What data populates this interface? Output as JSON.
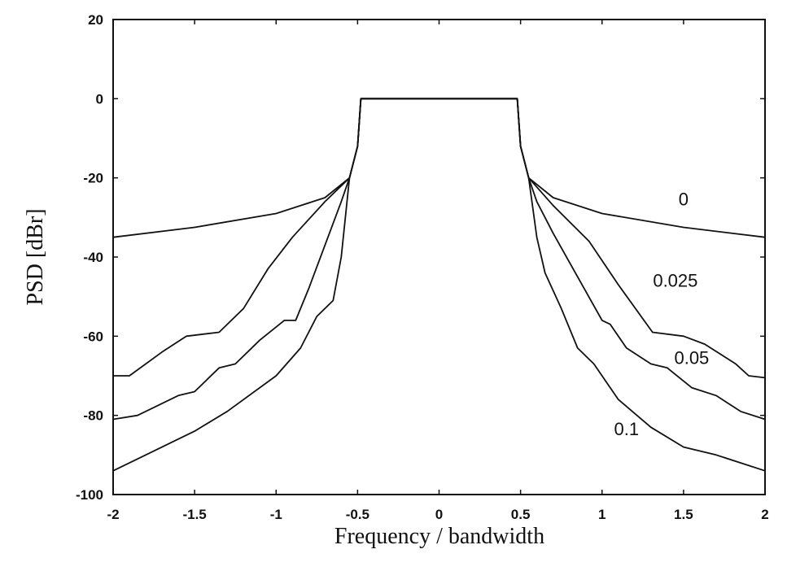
{
  "chart_data": {
    "type": "line",
    "title": "",
    "xlabel": "Frequency / bandwidth",
    "ylabel": "PSD [dBr]",
    "xlim": [
      -2,
      2
    ],
    "ylim": [
      -100,
      20
    ],
    "xticks": [
      -2,
      -1.5,
      -1,
      -0.5,
      0,
      0.5,
      1,
      1.5,
      2
    ],
    "xtick_labels": [
      "-2",
      "-1.5",
      "-1",
      "-0.5",
      "0",
      "0.5",
      "1",
      "1.5",
      "2"
    ],
    "yticks": [
      20,
      0,
      -20,
      -40,
      -60,
      -80,
      -100
    ],
    "ytick_labels": [
      "20",
      "0",
      "-20",
      "-40",
      "-60",
      "-80",
      "-100"
    ],
    "grid": false,
    "series": [
      {
        "name": "0",
        "label_at": [
          1.5,
          -27
        ],
        "x": [
          -2,
          -1.5,
          -1.0,
          -0.7,
          -0.55,
          -0.5,
          -0.48,
          0.48,
          0.5,
          0.55,
          0.7,
          1.0,
          1.5,
          2
        ],
        "y": [
          -35,
          -32.5,
          -29,
          -25,
          -20,
          -12,
          0,
          0,
          -12,
          -20,
          -25,
          -29,
          -32.5,
          -35
        ]
      },
      {
        "name": "0.025",
        "label_at": [
          1.45,
          -47.5
        ],
        "x": [
          -2,
          -1.9,
          -1.7,
          -1.55,
          -1.35,
          -1.2,
          -1.05,
          -0.9,
          -0.7,
          -0.55,
          -0.5,
          -0.48,
          0.48,
          0.5,
          0.55,
          0.7,
          0.92,
          1.1,
          1.31,
          1.5,
          1.63,
          1.82,
          1.9,
          2
        ],
        "y": [
          -70,
          -70,
          -64,
          -60,
          -59,
          -53,
          -43,
          -35,
          -26,
          -20,
          -12,
          0,
          0,
          -12,
          -20,
          -27,
          -36,
          -47,
          -59,
          -60,
          -62,
          -67,
          -70,
          -70.5
        ]
      },
      {
        "name": "0.05",
        "label_at": [
          1.55,
          -67
        ],
        "x": [
          -2,
          -1.85,
          -1.6,
          -1.5,
          -1.35,
          -1.25,
          -1.1,
          -0.95,
          -0.88,
          -0.8,
          -0.7,
          -0.6,
          -0.55,
          -0.5,
          -0.48,
          0.48,
          0.5,
          0.55,
          0.6,
          0.7,
          0.85,
          1.0,
          1.05,
          1.15,
          1.3,
          1.4,
          1.55,
          1.7,
          1.85,
          2
        ],
        "y": [
          -81,
          -80,
          -75,
          -74,
          -68,
          -67,
          -61,
          -56,
          -56,
          -48,
          -37,
          -26,
          -20,
          -12,
          0,
          0,
          -12,
          -20,
          -26,
          -34,
          -45,
          -56,
          -57,
          -63,
          -67,
          -68,
          -73,
          -75,
          -79,
          -81
        ]
      },
      {
        "name": "0.1",
        "label_at": [
          1.15,
          -85
        ],
        "x": [
          -2,
          -1.7,
          -1.5,
          -1.3,
          -1.0,
          -0.85,
          -0.75,
          -0.65,
          -0.6,
          -0.55,
          -0.5,
          -0.48,
          0.48,
          0.5,
          0.55,
          0.6,
          0.65,
          0.75,
          0.85,
          0.95,
          1.1,
          1.3,
          1.5,
          1.7,
          2
        ],
        "y": [
          -94,
          -88,
          -84,
          -79,
          -70,
          -63,
          -55,
          -51,
          -40,
          -20,
          -12,
          0,
          0,
          -12,
          -20,
          -35,
          -44,
          -53,
          -63,
          -67,
          -76,
          -83,
          -88,
          -90,
          -94
        ]
      }
    ]
  }
}
